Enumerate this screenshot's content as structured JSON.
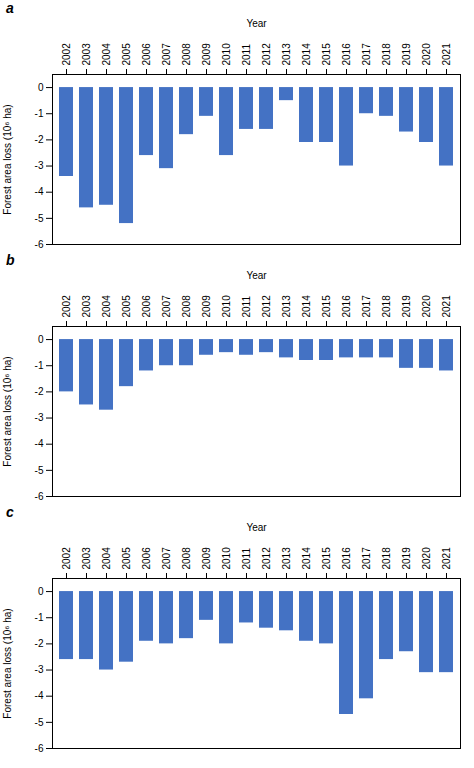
{
  "chart_data": [
    {
      "type": "bar",
      "title": "a",
      "xlabel": "Year",
      "ylabel": "Forest area loss (10⁶ ha)",
      "categories": [
        "2002",
        "2003",
        "2004",
        "2005",
        "2006",
        "2007",
        "2008",
        "2009",
        "2010",
        "2011",
        "2012",
        "2013",
        "2014",
        "2015",
        "2016",
        "2017",
        "2018",
        "2019",
        "2020",
        "2021"
      ],
      "values": [
        -3.4,
        -4.6,
        -4.5,
        -5.2,
        -2.6,
        -3.1,
        -1.8,
        -1.1,
        -2.6,
        -1.6,
        -1.6,
        -0.5,
        -2.1,
        -2.1,
        -3.0,
        -1.0,
        -1.1,
        -1.7,
        -2.1,
        -3.0
      ],
      "color": "#4472C4",
      "ylim": [
        -6,
        0.5
      ],
      "yticks": [
        0,
        -1,
        -2,
        -3,
        -4,
        -5,
        -6
      ]
    },
    {
      "type": "bar",
      "title": "b",
      "xlabel": "Year",
      "ylabel": "Forest area loss (10⁶ ha)",
      "categories": [
        "2002",
        "2003",
        "2004",
        "2005",
        "2006",
        "2007",
        "2008",
        "2009",
        "2010",
        "2011",
        "2012",
        "2013",
        "2014",
        "2015",
        "2016",
        "2017",
        "2018",
        "2019",
        "2020",
        "2021"
      ],
      "values": [
        -2.0,
        -2.5,
        -2.7,
        -1.8,
        -1.2,
        -1.0,
        -1.0,
        -0.6,
        -0.5,
        -0.6,
        -0.5,
        -0.7,
        -0.8,
        -0.8,
        -0.7,
        -0.7,
        -0.7,
        -1.1,
        -1.1,
        -1.2
      ],
      "color": "#4472C4",
      "ylim": [
        -6,
        0.5
      ],
      "yticks": [
        0,
        -1,
        -2,
        -3,
        -4,
        -5,
        -6
      ]
    },
    {
      "type": "bar",
      "title": "c",
      "xlabel": "Year",
      "ylabel": "Forest area loss (10⁶ ha)",
      "categories": [
        "2002",
        "2003",
        "2004",
        "2005",
        "2006",
        "2007",
        "2008",
        "2009",
        "2010",
        "2011",
        "2012",
        "2013",
        "2014",
        "2015",
        "2016",
        "2017",
        "2018",
        "2019",
        "2020",
        "2021"
      ],
      "values": [
        -2.6,
        -2.6,
        -3.0,
        -2.7,
        -1.9,
        -2.0,
        -1.8,
        -1.1,
        -2.0,
        -1.2,
        -1.4,
        -1.5,
        -1.9,
        -2.0,
        -4.7,
        -4.1,
        -2.6,
        -2.3,
        -3.1,
        -3.1
      ],
      "color": "#4472C4",
      "ylim": [
        -6,
        0.5
      ],
      "yticks": [
        0,
        -1,
        -2,
        -3,
        -4,
        -5,
        -6
      ]
    }
  ]
}
